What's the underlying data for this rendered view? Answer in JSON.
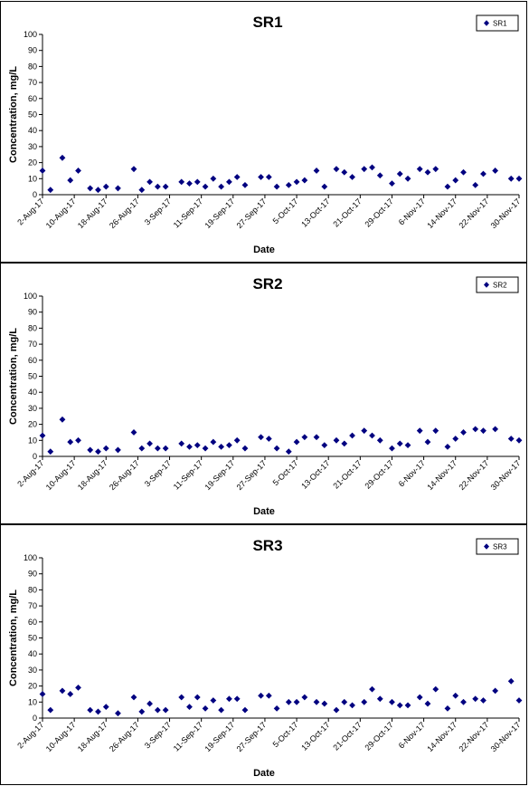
{
  "chart_data": [
    {
      "type": "scatter",
      "title": "SR1",
      "xlabel": "Date",
      "ylabel": "Concentration, mg/L",
      "ylim": [
        0,
        100
      ],
      "yticks": [
        "0",
        "10",
        "20",
        "30",
        "40",
        "50",
        "60",
        "70",
        "80",
        "90",
        "100"
      ],
      "xticks": [
        "2-Aug-17",
        "10-Aug-17",
        "18-Aug-17",
        "26-Aug-17",
        "3-Sep-17",
        "11-Sep-17",
        "19-Sep-17",
        "27-Sep-17",
        "5-Oct-17",
        "13-Oct-17",
        "21-Oct-17",
        "29-Oct-17",
        "6-Nov-17",
        "14-Nov-17",
        "22-Nov-17",
        "30-Nov-17"
      ],
      "xlim": [
        "2017-08-02",
        "2017-11-30"
      ],
      "legend": "top-right",
      "grid": false,
      "marker_color": "#000080",
      "series": [
        {
          "name": "SR1",
          "x": [
            "2017-08-02",
            "2017-08-04",
            "2017-08-07",
            "2017-08-09",
            "2017-08-11",
            "2017-08-14",
            "2017-08-16",
            "2017-08-18",
            "2017-08-21",
            "2017-08-25",
            "2017-08-27",
            "2017-08-29",
            "2017-08-31",
            "2017-09-02",
            "2017-09-06",
            "2017-09-08",
            "2017-09-10",
            "2017-09-12",
            "2017-09-14",
            "2017-09-16",
            "2017-09-18",
            "2017-09-20",
            "2017-09-22",
            "2017-09-26",
            "2017-09-28",
            "2017-09-30",
            "2017-10-03",
            "2017-10-05",
            "2017-10-07",
            "2017-10-10",
            "2017-10-12",
            "2017-10-15",
            "2017-10-17",
            "2017-10-19",
            "2017-10-22",
            "2017-10-24",
            "2017-10-26",
            "2017-10-29",
            "2017-10-31",
            "2017-11-02",
            "2017-11-05",
            "2017-11-07",
            "2017-11-09",
            "2017-11-12",
            "2017-11-14",
            "2017-11-16",
            "2017-11-19",
            "2017-11-21",
            "2017-11-24",
            "2017-11-28",
            "2017-11-30"
          ],
          "y": [
            15,
            3,
            23,
            9,
            15,
            4,
            3,
            5,
            4,
            16,
            3,
            8,
            5,
            5,
            8,
            7,
            8,
            5,
            10,
            5,
            8,
            11,
            6,
            11,
            11,
            5,
            6,
            8,
            9,
            15,
            5,
            16,
            14,
            11,
            16,
            17,
            12,
            7,
            13,
            10,
            16,
            14,
            16,
            5,
            9,
            14,
            6,
            13,
            15,
            10,
            10
          ]
        }
      ]
    },
    {
      "type": "scatter",
      "title": "SR2",
      "xlabel": "Date",
      "ylabel": "Concentration, mg/L",
      "ylim": [
        0,
        100
      ],
      "yticks": [
        "0",
        "10",
        "20",
        "30",
        "40",
        "50",
        "60",
        "70",
        "80",
        "90",
        "100"
      ],
      "xticks": [
        "2-Aug-17",
        "10-Aug-17",
        "18-Aug-17",
        "26-Aug-17",
        "3-Sep-17",
        "11-Sep-17",
        "19-Sep-17",
        "27-Sep-17",
        "5-Oct-17",
        "13-Oct-17",
        "21-Oct-17",
        "29-Oct-17",
        "6-Nov-17",
        "14-Nov-17",
        "22-Nov-17",
        "30-Nov-17"
      ],
      "xlim": [
        "2017-08-02",
        "2017-11-30"
      ],
      "legend": "top-right",
      "grid": false,
      "marker_color": "#000080",
      "series": [
        {
          "name": "SR2",
          "x": [
            "2017-08-02",
            "2017-08-04",
            "2017-08-07",
            "2017-08-09",
            "2017-08-11",
            "2017-08-14",
            "2017-08-16",
            "2017-08-18",
            "2017-08-21",
            "2017-08-25",
            "2017-08-27",
            "2017-08-29",
            "2017-08-31",
            "2017-09-02",
            "2017-09-06",
            "2017-09-08",
            "2017-09-10",
            "2017-09-12",
            "2017-09-14",
            "2017-09-16",
            "2017-09-18",
            "2017-09-20",
            "2017-09-22",
            "2017-09-26",
            "2017-09-28",
            "2017-09-30",
            "2017-10-03",
            "2017-10-05",
            "2017-10-07",
            "2017-10-10",
            "2017-10-12",
            "2017-10-15",
            "2017-10-17",
            "2017-10-19",
            "2017-10-22",
            "2017-10-24",
            "2017-10-26",
            "2017-10-29",
            "2017-10-31",
            "2017-11-02",
            "2017-11-05",
            "2017-11-07",
            "2017-11-09",
            "2017-11-12",
            "2017-11-14",
            "2017-11-16",
            "2017-11-19",
            "2017-11-21",
            "2017-11-24",
            "2017-11-28",
            "2017-11-30"
          ],
          "y": [
            13,
            3,
            23,
            9,
            10,
            4,
            3,
            5,
            4,
            15,
            5,
            8,
            5,
            5,
            8,
            6,
            7,
            5,
            9,
            6,
            7,
            10,
            5,
            12,
            11,
            5,
            3,
            9,
            12,
            12,
            7,
            10,
            8,
            13,
            16,
            13,
            10,
            5,
            8,
            7,
            16,
            9,
            16,
            6,
            11,
            15,
            17,
            16,
            17,
            11,
            10
          ]
        }
      ]
    },
    {
      "type": "scatter",
      "title": "SR3",
      "xlabel": "Date",
      "ylabel": "Concentration, mg/L",
      "ylim": [
        0,
        100
      ],
      "yticks": [
        "0",
        "10",
        "20",
        "30",
        "40",
        "50",
        "60",
        "70",
        "80",
        "90",
        "100"
      ],
      "xticks": [
        "2-Aug-17",
        "10-Aug-17",
        "18-Aug-17",
        "26-Aug-17",
        "3-Sep-17",
        "11-Sep-17",
        "19-Sep-17",
        "27-Sep-17",
        "5-Oct-17",
        "13-Oct-17",
        "21-Oct-17",
        "29-Oct-17",
        "6-Nov-17",
        "14-Nov-17",
        "22-Nov-17",
        "30-Nov-17"
      ],
      "xlim": [
        "2017-08-02",
        "2017-11-30"
      ],
      "legend": "top-right",
      "grid": false,
      "marker_color": "#000080",
      "series": [
        {
          "name": "SR3",
          "x": [
            "2017-08-02",
            "2017-08-04",
            "2017-08-07",
            "2017-08-09",
            "2017-08-11",
            "2017-08-14",
            "2017-08-16",
            "2017-08-18",
            "2017-08-21",
            "2017-08-25",
            "2017-08-27",
            "2017-08-29",
            "2017-08-31",
            "2017-09-02",
            "2017-09-06",
            "2017-09-08",
            "2017-09-10",
            "2017-09-12",
            "2017-09-14",
            "2017-09-16",
            "2017-09-18",
            "2017-09-20",
            "2017-09-22",
            "2017-09-26",
            "2017-09-28",
            "2017-09-30",
            "2017-10-03",
            "2017-10-05",
            "2017-10-07",
            "2017-10-10",
            "2017-10-12",
            "2017-10-15",
            "2017-10-17",
            "2017-10-19",
            "2017-10-22",
            "2017-10-24",
            "2017-10-26",
            "2017-10-29",
            "2017-10-31",
            "2017-11-02",
            "2017-11-05",
            "2017-11-07",
            "2017-11-09",
            "2017-11-12",
            "2017-11-14",
            "2017-11-16",
            "2017-11-19",
            "2017-11-21",
            "2017-11-24",
            "2017-11-28",
            "2017-11-30"
          ],
          "y": [
            15,
            5,
            17,
            15,
            19,
            5,
            4,
            7,
            3,
            13,
            4,
            9,
            5,
            5,
            13,
            7,
            13,
            6,
            11,
            5,
            12,
            12,
            5,
            14,
            14,
            6,
            10,
            10,
            13,
            10,
            9,
            5,
            10,
            8,
            10,
            18,
            12,
            10,
            8,
            8,
            13,
            9,
            18,
            6,
            14,
            10,
            12,
            11,
            17,
            23,
            11
          ]
        }
      ]
    }
  ]
}
